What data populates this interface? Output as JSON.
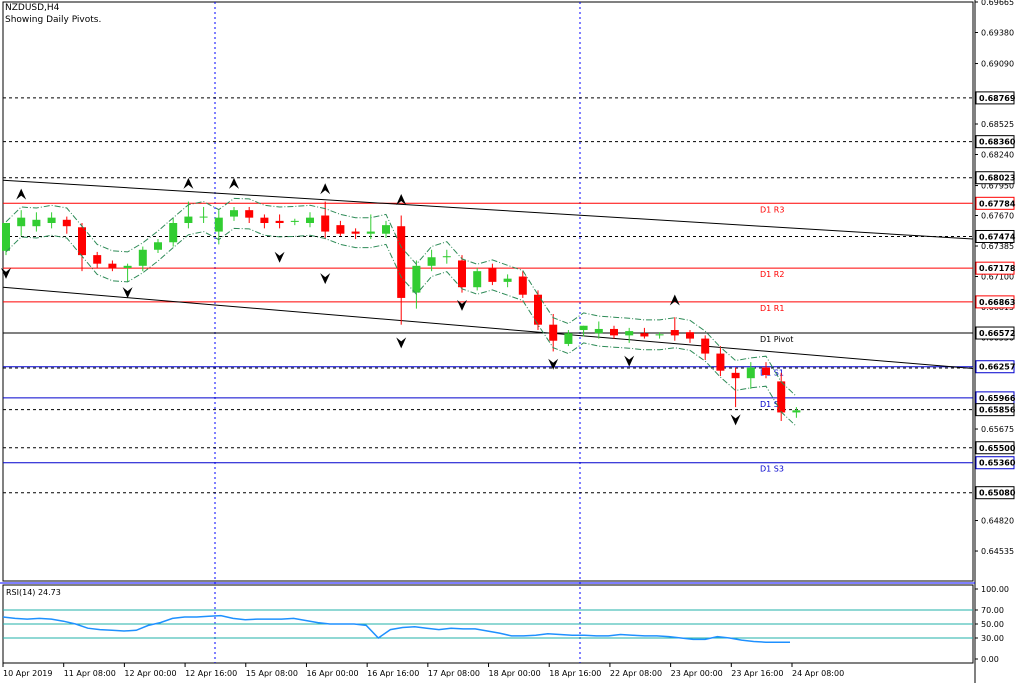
{
  "header": {
    "symbol_line": "NZDUSD,H4",
    "subtitle": "Showing Daily Pivots."
  },
  "colors": {
    "background": "#ffffff",
    "bull": "#32cd32",
    "bear": "#ff0000",
    "pivot_line": "#ff0000",
    "support_line": "#0000cd",
    "trendline": "#000000",
    "envelope": "#2e8b57",
    "rsi_line": "#1e90ff",
    "rsi_levels": "#20b2aa",
    "grid": "#000000",
    "separator": "#0000ff",
    "label_box_border": "#ff0000",
    "label_box_border_blue": "#0000cd"
  },
  "chart_data": [
    {
      "type": "candlestick",
      "symbol": "NZDUSD",
      "timeframe": "H4",
      "ylim": [
        0.64255,
        0.69665
      ],
      "price_axis_ticks": [
        "0.69665",
        "0.69380",
        "0.69090",
        "0.68525",
        "0.68240",
        "0.67950",
        "0.67670",
        "0.67385",
        "0.67100",
        "0.66815",
        "0.66530",
        "0.66240",
        "0.65675",
        "0.65385",
        "0.64820",
        "0.64535"
      ],
      "x_tick_labels": [
        "10 Apr 2019",
        "11 Apr 08:00",
        "12 Apr 00:00",
        "12 Apr 16:00",
        "15 Apr 08:00",
        "16 Apr 00:00",
        "16 Apr 16:00",
        "17 Apr 08:00",
        "18 Apr 00:00",
        "18 Apr 16:00",
        "22 Apr 08:00",
        "23 Apr 00:00",
        "23 Apr 16:00",
        "24 Apr 08:00"
      ],
      "candles": [
        {
          "o": 0.6734,
          "h": 0.6755,
          "l": 0.673,
          "c": 0.676
        },
        {
          "o": 0.6757,
          "h": 0.6772,
          "l": 0.6748,
          "c": 0.6765
        },
        {
          "o": 0.6757,
          "h": 0.677,
          "l": 0.6752,
          "c": 0.6763
        },
        {
          "o": 0.676,
          "h": 0.677,
          "l": 0.6755,
          "c": 0.6765
        },
        {
          "o": 0.6763,
          "h": 0.6766,
          "l": 0.675,
          "c": 0.6757
        },
        {
          "o": 0.6756,
          "h": 0.676,
          "l": 0.6715,
          "c": 0.673
        },
        {
          "o": 0.673,
          "h": 0.6733,
          "l": 0.6718,
          "c": 0.6722
        },
        {
          "o": 0.6722,
          "h": 0.6725,
          "l": 0.6715,
          "c": 0.6718
        },
        {
          "o": 0.6718,
          "h": 0.6722,
          "l": 0.6705,
          "c": 0.672
        },
        {
          "o": 0.672,
          "h": 0.6738,
          "l": 0.6715,
          "c": 0.6735
        },
        {
          "o": 0.6735,
          "h": 0.6745,
          "l": 0.6732,
          "c": 0.6742
        },
        {
          "o": 0.6742,
          "h": 0.6765,
          "l": 0.6738,
          "c": 0.676
        },
        {
          "o": 0.676,
          "h": 0.678,
          "l": 0.6755,
          "c": 0.6766
        },
        {
          "o": 0.6766,
          "h": 0.6775,
          "l": 0.676,
          "c": 0.6766
        },
        {
          "o": 0.6752,
          "h": 0.6772,
          "l": 0.674,
          "c": 0.6765
        },
        {
          "o": 0.6766,
          "h": 0.6775,
          "l": 0.6762,
          "c": 0.6772
        },
        {
          "o": 0.6772,
          "h": 0.6775,
          "l": 0.676,
          "c": 0.6765
        },
        {
          "o": 0.6765,
          "h": 0.6768,
          "l": 0.6755,
          "c": 0.676
        },
        {
          "o": 0.6762,
          "h": 0.6768,
          "l": 0.6755,
          "c": 0.676
        },
        {
          "o": 0.6761,
          "h": 0.6764,
          "l": 0.6758,
          "c": 0.6762
        },
        {
          "o": 0.676,
          "h": 0.677,
          "l": 0.6756,
          "c": 0.6765
        },
        {
          "o": 0.6767,
          "h": 0.678,
          "l": 0.6745,
          "c": 0.6752
        },
        {
          "o": 0.6758,
          "h": 0.6762,
          "l": 0.6748,
          "c": 0.675
        },
        {
          "o": 0.6752,
          "h": 0.6755,
          "l": 0.6745,
          "c": 0.675
        },
        {
          "o": 0.675,
          "h": 0.6768,
          "l": 0.6745,
          "c": 0.6752
        },
        {
          "o": 0.675,
          "h": 0.6762,
          "l": 0.6746,
          "c": 0.6758
        },
        {
          "o": 0.6757,
          "h": 0.6767,
          "l": 0.6665,
          "c": 0.669
        },
        {
          "o": 0.6695,
          "h": 0.6725,
          "l": 0.668,
          "c": 0.672
        },
        {
          "o": 0.672,
          "h": 0.6735,
          "l": 0.6715,
          "c": 0.6728
        },
        {
          "o": 0.6728,
          "h": 0.6735,
          "l": 0.6722,
          "c": 0.6729
        },
        {
          "o": 0.6725,
          "h": 0.673,
          "l": 0.6695,
          "c": 0.67
        },
        {
          "o": 0.67,
          "h": 0.6718,
          "l": 0.6697,
          "c": 0.6715
        },
        {
          "o": 0.6718,
          "h": 0.6722,
          "l": 0.6702,
          "c": 0.6705
        },
        {
          "o": 0.6705,
          "h": 0.6712,
          "l": 0.67,
          "c": 0.6708
        },
        {
          "o": 0.671,
          "h": 0.6715,
          "l": 0.669,
          "c": 0.6693
        },
        {
          "o": 0.6693,
          "h": 0.6697,
          "l": 0.666,
          "c": 0.6665
        },
        {
          "o": 0.6665,
          "h": 0.6675,
          "l": 0.664,
          "c": 0.665
        },
        {
          "o": 0.6647,
          "h": 0.666,
          "l": 0.6645,
          "c": 0.6657
        },
        {
          "o": 0.666,
          "h": 0.6664,
          "l": 0.6654,
          "c": 0.6664
        },
        {
          "o": 0.6657,
          "h": 0.6668,
          "l": 0.6652,
          "c": 0.6661
        },
        {
          "o": 0.6661,
          "h": 0.6664,
          "l": 0.6652,
          "c": 0.6655
        },
        {
          "o": 0.6655,
          "h": 0.6662,
          "l": 0.6648,
          "c": 0.6659
        },
        {
          "o": 0.6657,
          "h": 0.6662,
          "l": 0.6652,
          "c": 0.6654
        },
        {
          "o": 0.6655,
          "h": 0.6658,
          "l": 0.6652,
          "c": 0.6656
        },
        {
          "o": 0.666,
          "h": 0.6672,
          "l": 0.665,
          "c": 0.6655
        },
        {
          "o": 0.6658,
          "h": 0.666,
          "l": 0.6648,
          "c": 0.6652
        },
        {
          "o": 0.6652,
          "h": 0.6655,
          "l": 0.6632,
          "c": 0.6638
        },
        {
          "o": 0.6638,
          "h": 0.6645,
          "l": 0.6617,
          "c": 0.6622
        },
        {
          "o": 0.662,
          "h": 0.6625,
          "l": 0.6588,
          "c": 0.6615
        },
        {
          "o": 0.6615,
          "h": 0.663,
          "l": 0.6605,
          "c": 0.6625
        },
        {
          "o": 0.6625,
          "h": 0.663,
          "l": 0.6615,
          "c": 0.6618
        },
        {
          "o": 0.6612,
          "h": 0.662,
          "l": 0.6575,
          "c": 0.6583
        },
        {
          "o": 0.6583,
          "h": 0.6588,
          "l": 0.6578,
          "c": 0.6585
        }
      ],
      "pivot_levels": [
        {
          "label": "D1 R3",
          "value": 0.67784
        },
        {
          "label": "D1 R2",
          "value": 0.67178
        },
        {
          "label": "D1 R1",
          "value": 0.66863
        },
        {
          "label": "D1 Pivot",
          "value": 0.66572
        },
        {
          "label": "D1 S1",
          "value": 0.66257
        },
        {
          "label": "D1 S2",
          "value": 0.65966
        },
        {
          "label": "D1 S3",
          "value": 0.6536
        }
      ],
      "price_boxes": [
        "0.68769",
        "0.68360",
        "0.68023",
        "0.67784",
        "0.67474",
        "0.67178",
        "0.66863",
        "0.66572",
        "0.66257",
        "0.65966",
        "0.65856",
        "0.65500",
        "0.65360",
        "0.65080"
      ],
      "dashed_levels": [
        0.68769,
        0.6836,
        0.68023,
        0.67474,
        0.66245,
        0.65856,
        0.655,
        0.6508
      ]
    },
    {
      "type": "line",
      "title": "RSI(14) 24.73",
      "ylim": [
        0,
        100
      ],
      "ticks": [
        "100.00",
        "70.00",
        "50.00",
        "30.00",
        "0.00"
      ],
      "levels": [
        70,
        50,
        30
      ],
      "values": [
        60,
        58,
        57,
        58,
        57,
        54,
        50,
        44,
        42,
        41,
        40,
        41,
        48,
        52,
        58,
        60,
        60,
        61,
        62,
        58,
        56,
        57,
        57,
        57,
        58,
        55,
        52,
        50,
        50,
        50,
        48,
        30,
        42,
        45,
        46,
        44,
        42,
        44,
        43,
        43,
        40,
        37,
        33,
        33,
        34,
        36,
        35,
        34,
        34,
        33,
        33,
        35,
        34,
        33,
        33,
        32,
        30,
        28,
        28,
        32,
        30,
        27,
        25,
        24,
        24,
        24
      ]
    }
  ]
}
